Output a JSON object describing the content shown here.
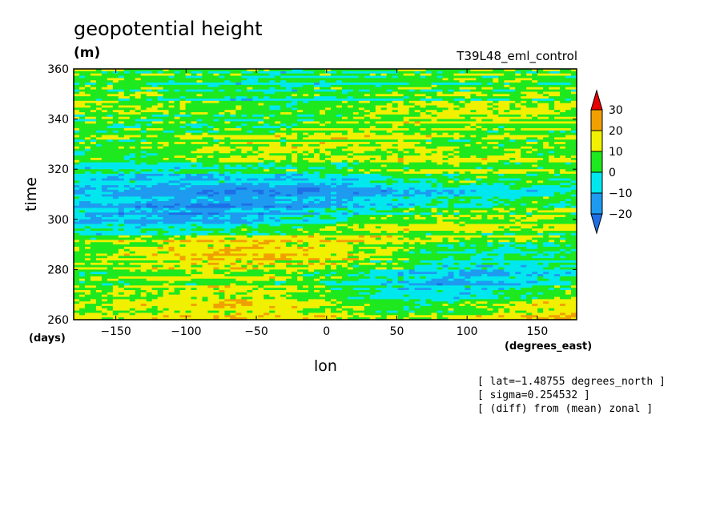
{
  "chart_data": {
    "type": "heatmap",
    "title": "geopotential height",
    "units": "(m)",
    "run": "T39L48_eml_control",
    "xlabel": "lon",
    "ylabel": "time",
    "x_unit": "(degrees_east)",
    "y_unit": "(days)",
    "xlim": [
      -180,
      178
    ],
    "ylim": [
      260,
      360
    ],
    "xticks": [
      -150,
      -100,
      -50,
      0,
      50,
      100,
      150
    ],
    "yticks": [
      260,
      280,
      300,
      320,
      340,
      360
    ],
    "colorbar": {
      "levels": [
        -20,
        -10,
        0,
        10,
        20,
        30
      ],
      "labels": [
        "30",
        "20",
        "10",
        "0",
        "−10",
        "−20"
      ],
      "colors": [
        "#1e6fe6",
        "#1e9bf0",
        "#00e8ee",
        "#1ee81e",
        "#f0f000",
        "#f0a000",
        "#e60000"
      ]
    },
    "notes": [
      "[ lat=−1.48755 degrees_north ]",
      "[ sigma=0.254532 ]",
      "[ (diff) from (mean) zonal ]"
    ]
  }
}
